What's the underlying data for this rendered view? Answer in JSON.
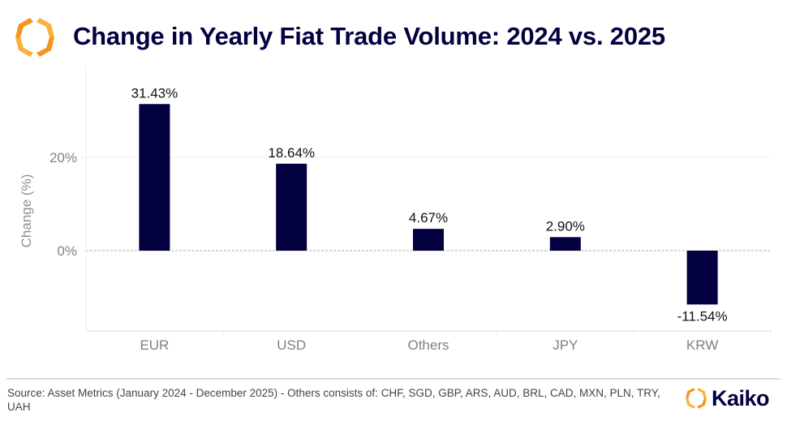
{
  "header": {
    "title": "Change in Yearly Fiat Trade Volume: 2024 vs. 2025",
    "logo_icon": "kaiko-hexagon-logo-icon"
  },
  "colors": {
    "bar": "#03003f",
    "title": "#03003f",
    "axis_text": "#808080",
    "logo_orange": "#f7941d",
    "logo_yellow": "#fbb03b"
  },
  "chart_data": {
    "type": "bar",
    "title": "Change in Yearly Fiat Trade Volume: 2024 vs. 2025",
    "xlabel": "",
    "ylabel": "Change (%)",
    "categories": [
      "EUR",
      "USD",
      "Others",
      "JPY",
      "KRW"
    ],
    "values": [
      31.43,
      18.64,
      4.67,
      2.9,
      -11.54
    ],
    "data_labels": [
      "31.43%",
      "18.64%",
      "4.67%",
      "2.90%",
      "-11.54%"
    ],
    "yticks": [
      0,
      20
    ],
    "ytick_labels": [
      "0%",
      "20%"
    ],
    "ylim": [
      -17,
      37
    ],
    "grid": true,
    "zero_line": "dashed",
    "legend": "none"
  },
  "footer": {
    "source": "Source: Asset Metrics (January 2024 - December 2025) - Others consists of: CHF, SGD, GBP, ARS, AUD, BRL, CAD, MXN, PLN, TRY, UAH",
    "brand_name": "Kaiko",
    "brand_icon": "kaiko-hexagon-logo-icon"
  }
}
